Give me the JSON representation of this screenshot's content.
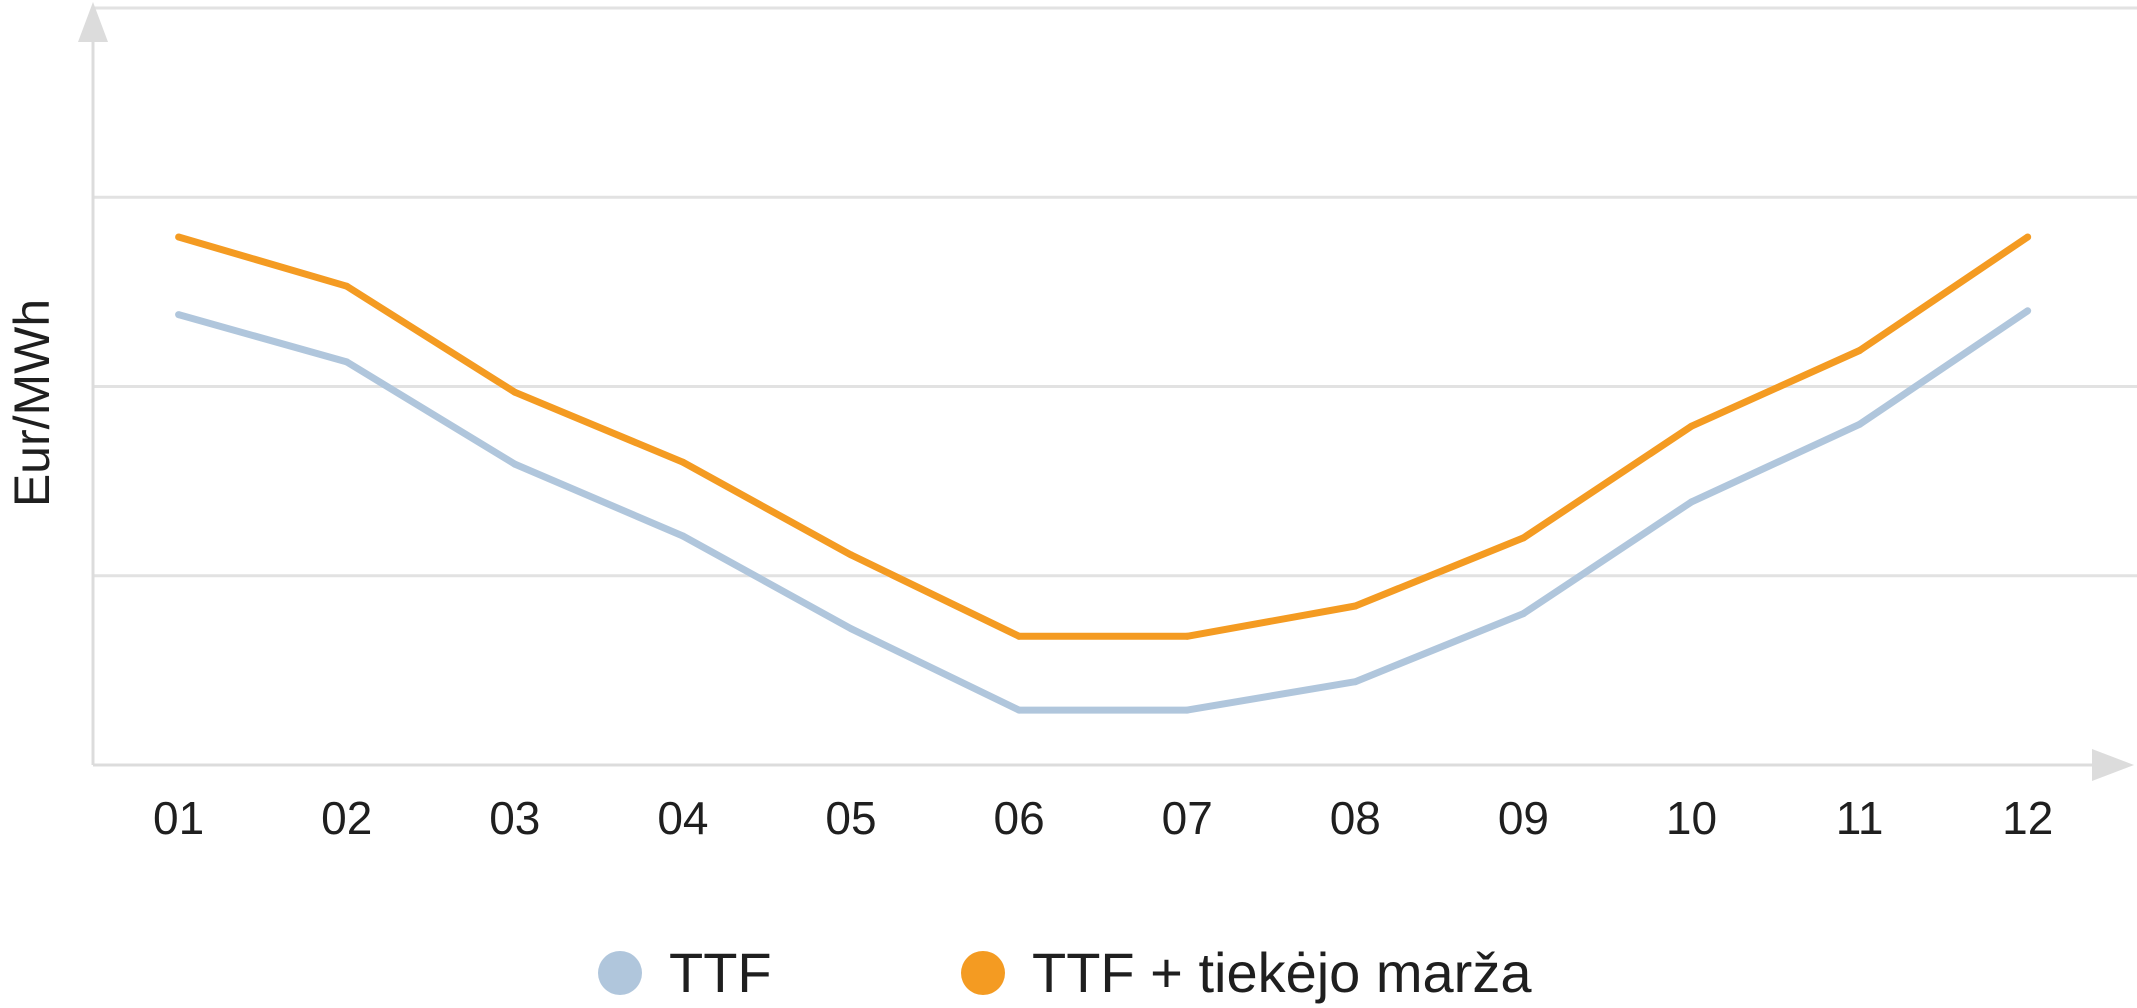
{
  "chart_data": {
    "type": "line",
    "categories": [
      "01",
      "02",
      "03",
      "04",
      "05",
      "06",
      "07",
      "08",
      "09",
      "10",
      "11",
      "12"
    ],
    "series": [
      {
        "name": "TTF",
        "color": "#b0c6dc",
        "values": [
          2.38,
          2.13,
          1.59,
          1.21,
          0.72,
          0.29,
          0.29,
          0.44,
          0.8,
          1.39,
          1.8,
          2.4
        ]
      },
      {
        "name": "TTF + tiekėjo marža",
        "color": "#f49b22",
        "values": [
          2.79,
          2.53,
          1.97,
          1.6,
          1.11,
          0.68,
          0.68,
          0.84,
          1.2,
          1.79,
          2.19,
          2.79
        ]
      }
    ],
    "ylabel": "Eur/MWh",
    "ylim": [
      0,
      4
    ],
    "grid": true,
    "legend": "bottom"
  },
  "colors": {
    "axis": "#dcdcdc",
    "grid": "#e2e2e2",
    "text": "#1f1f1f"
  }
}
